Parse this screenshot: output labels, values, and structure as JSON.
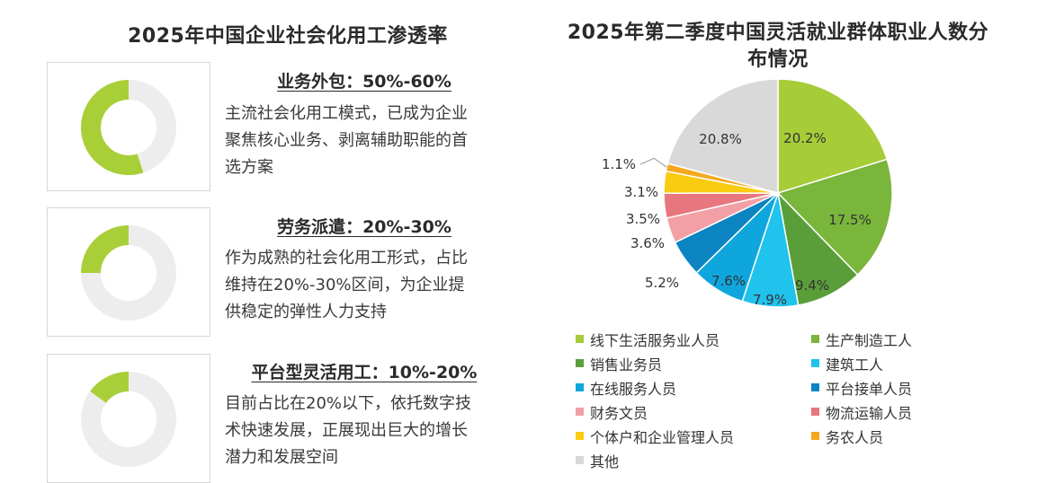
{
  "left": {
    "title": "2025年中国企业社会化用工渗透率",
    "cards": [
      {
        "heading": "业务外包：50%-60%",
        "desc_lines": [
          "主流社会化用工模式，已成为企业",
          "聚焦核心业务、剥离辅助职能的首",
          "选方案"
        ]
      },
      {
        "heading": "劳务派遣：20%-30%",
        "desc_lines": [
          "作为成熟的社会化用工形式，占比",
          "维持在20%-30%区间，为企业提",
          "供稳定的弹性人力支持"
        ]
      },
      {
        "heading": "平台型灵活用工：10%-20%",
        "desc_lines": [
          "目前占比在20%以下，依托数字技",
          "术快速发展，正展现出巨大的增长",
          "潜力和发展空间"
        ]
      }
    ]
  },
  "chart_data": [
    {
      "type": "pie",
      "variant": "donut",
      "title": "",
      "categories": [
        "业务外包",
        "劳务派遣",
        "平台型灵活用工"
      ],
      "values": [
        55,
        25,
        15
      ],
      "value_unit": "%",
      "filled_color": "#a8cf38",
      "track_color": "#ededed"
    },
    {
      "type": "pie",
      "title": "2025年第二季度中国灵活就业群体职业人数分布情况",
      "categories": [
        "线下生活服务业人员",
        "生产制造工人",
        "销售业务员",
        "建筑工人",
        "在线服务人员",
        "平台接单人员",
        "财务文员",
        "物流运输人员",
        "个体户和企业管理人员",
        "务农人员",
        "其他"
      ],
      "values": [
        20.2,
        17.5,
        9.4,
        7.9,
        7.6,
        5.2,
        3.6,
        3.5,
        3.1,
        1.1,
        20.8
      ],
      "labels": [
        "20.2%",
        "17.5%",
        "9.4%",
        "7.9%",
        "7.6%",
        "5.2%",
        "3.6%",
        "3.5%",
        "3.1%",
        "1.1%",
        "20.8%"
      ],
      "colors": [
        "#a6cc38",
        "#7ab53c",
        "#5a9e3a",
        "#1fc3ec",
        "#0fa6de",
        "#0c84c1",
        "#f2a0a6",
        "#e8767f",
        "#f9cc12",
        "#f5a81e",
        "#d9d9d9"
      ],
      "legend_position": "bottom"
    }
  ]
}
